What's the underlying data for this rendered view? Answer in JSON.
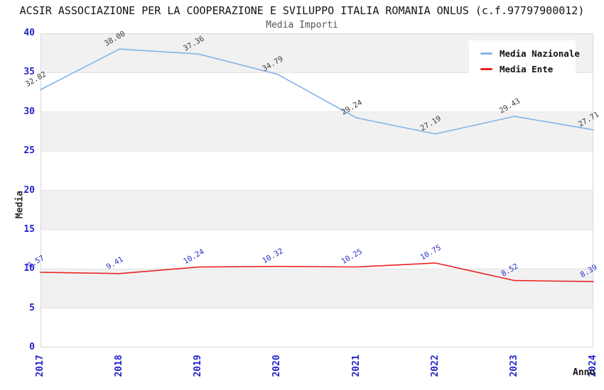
{
  "header": {
    "title": "ACSIR ASSOCIAZIONE PER LA COOPERAZIONE E SVILUPPO ITALIA ROMANIA ONLUS (c.f.97797900012)",
    "subtitle": "Media Importi"
  },
  "chart_data": {
    "type": "line",
    "title": "ACSIR ASSOCIAZIONE PER LA COOPERAZIONE E SVILUPPO ITALIA ROMANIA ONLUS (c.f.97797900012)",
    "subtitle": "Media Importi",
    "categories": [
      "2017",
      "2018",
      "2019",
      "2020",
      "2021",
      "2022",
      "2023",
      "2024"
    ],
    "series": [
      {
        "name": "Media Nazionale",
        "color": "#85b3e8",
        "label_color": "#3c3c3c",
        "values": [
          32.82,
          38.0,
          37.36,
          34.79,
          29.24,
          27.19,
          29.43,
          27.71
        ]
      },
      {
        "name": "Media Ente",
        "color": "#e82222",
        "label_color": "#2a2ec4",
        "values": [
          9.57,
          9.41,
          10.24,
          10.32,
          10.25,
          10.75,
          8.52,
          8.39
        ]
      }
    ],
    "xlabel": "Anno",
    "ylabel": "Media",
    "ylim": [
      0,
      40
    ],
    "ytick_step": 5,
    "legend_position": "top-right",
    "grid": "horizontal-bands-alternating",
    "colors": {
      "tick_label": "#2323cd",
      "band_gray": "#f1f1f1",
      "grid_line": "#e3e3e3",
      "plot_border": "#d8d8d8"
    }
  }
}
